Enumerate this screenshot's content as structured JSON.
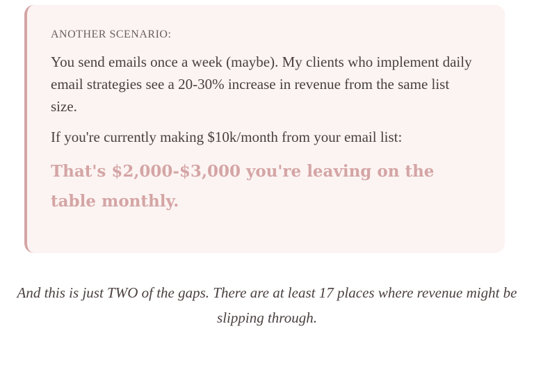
{
  "callout": {
    "label": "ANOTHER SCENARIO:",
    "paragraph1": "You send emails once a week (maybe). My clients who implement daily email strategies see a 20-30% increase in revenue from the same list size.",
    "paragraph2": "If you're currently making $10k/month from your email list:",
    "highlight": "That's $2,000-$3,000 you're leaving on the table monthly.",
    "accent_color": "#d4a5a5",
    "background_color": "#fcf4f2"
  },
  "footer_note": "And this is just TWO of the gaps. There are at least 17 places where revenue might be slipping through."
}
